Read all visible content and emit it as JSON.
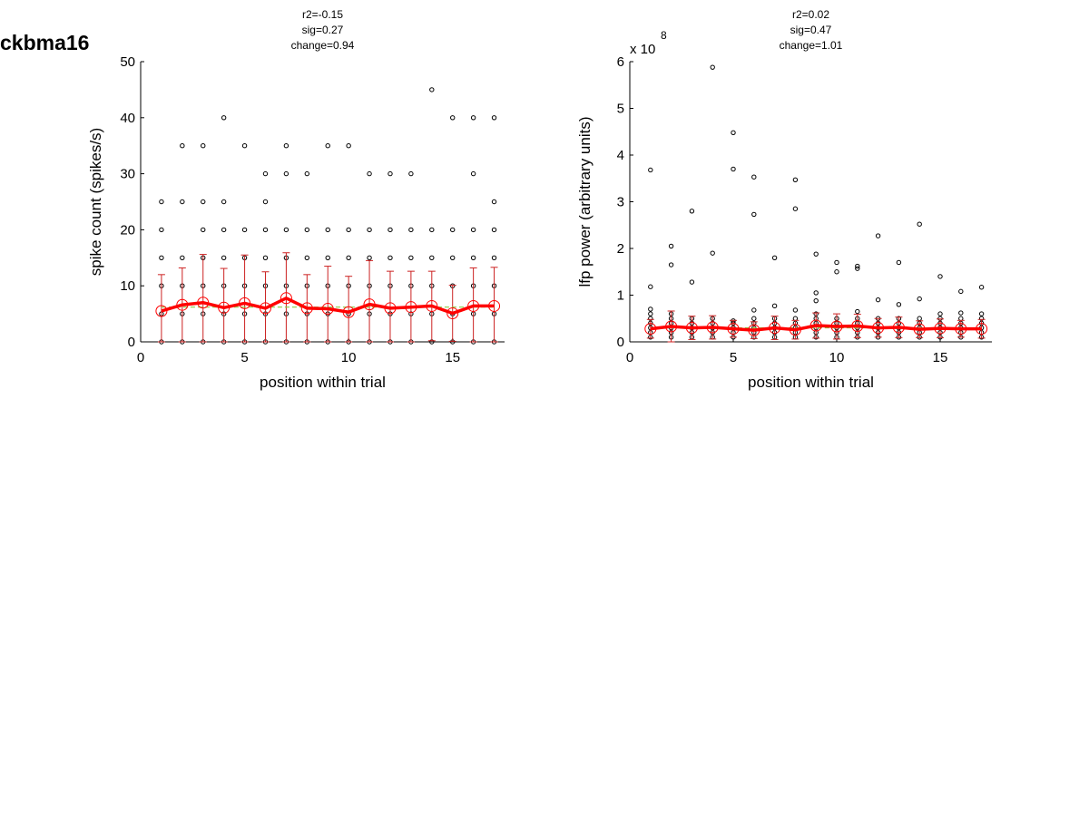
{
  "figure": {
    "label": "ckbma16",
    "colors": {
      "mean_line": "#ff0000",
      "error_bar": "#cc2222",
      "points": "#000000",
      "fit_line": "#88cc44",
      "axis": "#000000"
    }
  },
  "chart_data": [
    {
      "type": "scatter",
      "title_lines": [
        "r2=-0.15",
        "sig=0.27",
        "change=0.94"
      ],
      "xlabel": "position within trial",
      "ylabel": "spike count (spikes/s)",
      "exponent_label": "",
      "xlim": [
        0,
        17.5
      ],
      "ylim": [
        0,
        50
      ],
      "xticks": [
        0,
        5,
        10,
        15
      ],
      "yticks": [
        0,
        10,
        20,
        30,
        40,
        50
      ],
      "xtick_labels": [
        "0",
        "5",
        "10",
        "15"
      ],
      "ytick_labels": [
        "0",
        "10",
        "20",
        "30",
        "40",
        "50"
      ],
      "grid": false,
      "points": [
        [
          1,
          0
        ],
        [
          1,
          5
        ],
        [
          1,
          10
        ],
        [
          1,
          15
        ],
        [
          1,
          20
        ],
        [
          1,
          25
        ],
        [
          2,
          0
        ],
        [
          2,
          5
        ],
        [
          2,
          10
        ],
        [
          2,
          15
        ],
        [
          2,
          25
        ],
        [
          2,
          35
        ],
        [
          3,
          0
        ],
        [
          3,
          5
        ],
        [
          3,
          10
        ],
        [
          3,
          15
        ],
        [
          3,
          20
        ],
        [
          3,
          25
        ],
        [
          3,
          35
        ],
        [
          4,
          0
        ],
        [
          4,
          5
        ],
        [
          4,
          10
        ],
        [
          4,
          15
        ],
        [
          4,
          20
        ],
        [
          4,
          25
        ],
        [
          4,
          40
        ],
        [
          5,
          0
        ],
        [
          5,
          5
        ],
        [
          5,
          10
        ],
        [
          5,
          15
        ],
        [
          5,
          20
        ],
        [
          5,
          35
        ],
        [
          6,
          0
        ],
        [
          6,
          5
        ],
        [
          6,
          10
        ],
        [
          6,
          15
        ],
        [
          6,
          20
        ],
        [
          6,
          25
        ],
        [
          6,
          30
        ],
        [
          7,
          0
        ],
        [
          7,
          5
        ],
        [
          7,
          10
        ],
        [
          7,
          15
        ],
        [
          7,
          20
        ],
        [
          7,
          30
        ],
        [
          7,
          35
        ],
        [
          8,
          0
        ],
        [
          8,
          5
        ],
        [
          8,
          10
        ],
        [
          8,
          15
        ],
        [
          8,
          20
        ],
        [
          8,
          30
        ],
        [
          9,
          0
        ],
        [
          9,
          5
        ],
        [
          9,
          10
        ],
        [
          9,
          15
        ],
        [
          9,
          20
        ],
        [
          9,
          35
        ],
        [
          10,
          0
        ],
        [
          10,
          5
        ],
        [
          10,
          10
        ],
        [
          10,
          15
        ],
        [
          10,
          20
        ],
        [
          10,
          35
        ],
        [
          11,
          0
        ],
        [
          11,
          5
        ],
        [
          11,
          10
        ],
        [
          11,
          15
        ],
        [
          11,
          20
        ],
        [
          11,
          30
        ],
        [
          12,
          0
        ],
        [
          12,
          5
        ],
        [
          12,
          10
        ],
        [
          12,
          15
        ],
        [
          12,
          20
        ],
        [
          12,
          30
        ],
        [
          13,
          0
        ],
        [
          13,
          5
        ],
        [
          13,
          10
        ],
        [
          13,
          15
        ],
        [
          13,
          20
        ],
        [
          13,
          30
        ],
        [
          14,
          0
        ],
        [
          14,
          5
        ],
        [
          14,
          10
        ],
        [
          14,
          15
        ],
        [
          14,
          20
        ],
        [
          14,
          45
        ],
        [
          15,
          0
        ],
        [
          15,
          5
        ],
        [
          15,
          10
        ],
        [
          15,
          15
        ],
        [
          15,
          20
        ],
        [
          15,
          40
        ],
        [
          16,
          0
        ],
        [
          16,
          5
        ],
        [
          16,
          10
        ],
        [
          16,
          15
        ],
        [
          16,
          20
        ],
        [
          16,
          30
        ],
        [
          16,
          40
        ],
        [
          17,
          0
        ],
        [
          17,
          5
        ],
        [
          17,
          10
        ],
        [
          17,
          15
        ],
        [
          17,
          20
        ],
        [
          17,
          25
        ],
        [
          17,
          40
        ]
      ],
      "means": {
        "x": [
          1,
          2,
          3,
          4,
          5,
          6,
          7,
          8,
          9,
          10,
          11,
          12,
          13,
          14,
          15,
          16,
          17
        ],
        "y": [
          5.5,
          6.6,
          7.0,
          6.1,
          6.9,
          6.0,
          7.8,
          6.0,
          5.9,
          5.3,
          6.7,
          6.0,
          6.2,
          6.4,
          5.1,
          6.4,
          6.4
        ],
        "err": [
          6.5,
          6.6,
          8.6,
          7.0,
          8.6,
          6.5,
          8.1,
          6.0,
          7.6,
          6.4,
          7.8,
          6.6,
          6.4,
          6.2,
          5.0,
          6.8,
          6.9
        ]
      },
      "fit_line": {
        "x": [
          1,
          17
        ],
        "y": [
          6.2,
          6.2
        ]
      }
    },
    {
      "type": "scatter",
      "title_lines": [
        "r2=0.02",
        "sig=0.47",
        "change=1.01"
      ],
      "xlabel": "position within trial",
      "ylabel": "lfp power (arbitrary units)",
      "exponent_label": "x 10",
      "exponent_power": "8",
      "xlim": [
        0,
        17.5
      ],
      "ylim": [
        0,
        6
      ],
      "xticks": [
        0,
        5,
        10,
        15
      ],
      "yticks": [
        0,
        1,
        2,
        3,
        4,
        5,
        6
      ],
      "xtick_labels": [
        "0",
        "5",
        "10",
        "15"
      ],
      "ytick_labels": [
        "0",
        "1",
        "2",
        "3",
        "4",
        "5",
        "6"
      ],
      "grid": false,
      "points": [
        [
          1,
          0.1
        ],
        [
          1,
          0.2
        ],
        [
          1,
          0.3
        ],
        [
          1,
          0.4
        ],
        [
          1,
          0.5
        ],
        [
          1,
          0.6
        ],
        [
          1,
          0.7
        ],
        [
          1,
          1.18
        ],
        [
          1,
          3.68
        ],
        [
          2,
          0.1
        ],
        [
          2,
          0.2
        ],
        [
          2,
          0.3
        ],
        [
          2,
          0.4
        ],
        [
          2,
          0.5
        ],
        [
          2,
          0.6
        ],
        [
          2,
          1.65
        ],
        [
          2,
          2.05
        ],
        [
          3,
          0.1
        ],
        [
          3,
          0.2
        ],
        [
          3,
          0.3
        ],
        [
          3,
          0.4
        ],
        [
          3,
          0.5
        ],
        [
          3,
          1.28
        ],
        [
          3,
          2.8
        ],
        [
          4,
          0.1
        ],
        [
          4,
          0.2
        ],
        [
          4,
          0.3
        ],
        [
          4,
          0.4
        ],
        [
          4,
          0.5
        ],
        [
          4,
          1.9
        ],
        [
          4,
          5.88
        ],
        [
          5,
          0.1
        ],
        [
          5,
          0.2
        ],
        [
          5,
          0.3
        ],
        [
          5,
          0.4
        ],
        [
          5,
          0.45
        ],
        [
          5,
          3.7
        ],
        [
          5,
          4.48
        ],
        [
          6,
          0.1
        ],
        [
          6,
          0.2
        ],
        [
          6,
          0.3
        ],
        [
          6,
          0.4
        ],
        [
          6,
          0.5
        ],
        [
          6,
          0.68
        ],
        [
          6,
          2.73
        ],
        [
          6,
          3.53
        ],
        [
          7,
          0.1
        ],
        [
          7,
          0.2
        ],
        [
          7,
          0.3
        ],
        [
          7,
          0.4
        ],
        [
          7,
          0.5
        ],
        [
          7,
          0.77
        ],
        [
          7,
          1.8
        ],
        [
          8,
          0.1
        ],
        [
          8,
          0.2
        ],
        [
          8,
          0.3
        ],
        [
          8,
          0.4
        ],
        [
          8,
          0.5
        ],
        [
          8,
          0.68
        ],
        [
          8,
          2.85
        ],
        [
          8,
          3.47
        ],
        [
          9,
          0.1
        ],
        [
          9,
          0.2
        ],
        [
          9,
          0.3
        ],
        [
          9,
          0.4
        ],
        [
          9,
          0.5
        ],
        [
          9,
          0.6
        ],
        [
          9,
          0.88
        ],
        [
          9,
          1.05
        ],
        [
          9,
          1.88
        ],
        [
          10,
          0.1
        ],
        [
          10,
          0.2
        ],
        [
          10,
          0.3
        ],
        [
          10,
          0.4
        ],
        [
          10,
          0.5
        ],
        [
          10,
          1.5
        ],
        [
          10,
          1.7
        ],
        [
          11,
          0.1
        ],
        [
          11,
          0.2
        ],
        [
          11,
          0.3
        ],
        [
          11,
          0.4
        ],
        [
          11,
          0.5
        ],
        [
          11,
          0.65
        ],
        [
          11,
          1.57
        ],
        [
          11,
          1.62
        ],
        [
          12,
          0.1
        ],
        [
          12,
          0.2
        ],
        [
          12,
          0.3
        ],
        [
          12,
          0.4
        ],
        [
          12,
          0.5
        ],
        [
          12,
          0.9
        ],
        [
          12,
          2.27
        ],
        [
          13,
          0.1
        ],
        [
          13,
          0.2
        ],
        [
          13,
          0.3
        ],
        [
          13,
          0.4
        ],
        [
          13,
          0.5
        ],
        [
          13,
          0.8
        ],
        [
          13,
          1.7
        ],
        [
          14,
          0.1
        ],
        [
          14,
          0.2
        ],
        [
          14,
          0.3
        ],
        [
          14,
          0.4
        ],
        [
          14,
          0.5
        ],
        [
          14,
          0.92
        ],
        [
          14,
          2.52
        ],
        [
          15,
          0.1
        ],
        [
          15,
          0.2
        ],
        [
          15,
          0.3
        ],
        [
          15,
          0.4
        ],
        [
          15,
          0.5
        ],
        [
          15,
          0.6
        ],
        [
          15,
          1.4
        ],
        [
          16,
          0.1
        ],
        [
          16,
          0.2
        ],
        [
          16,
          0.3
        ],
        [
          16,
          0.4
        ],
        [
          16,
          0.5
        ],
        [
          16,
          0.62
        ],
        [
          16,
          1.08
        ],
        [
          17,
          0.1
        ],
        [
          17,
          0.2
        ],
        [
          17,
          0.3
        ],
        [
          17,
          0.4
        ],
        [
          17,
          0.5
        ],
        [
          17,
          0.6
        ],
        [
          17,
          1.17
        ]
      ],
      "means": {
        "x": [
          1,
          2,
          3,
          4,
          5,
          6,
          7,
          8,
          9,
          10,
          11,
          12,
          13,
          14,
          15,
          16,
          17
        ],
        "y": [
          0.28,
          0.33,
          0.3,
          0.31,
          0.28,
          0.25,
          0.3,
          0.26,
          0.35,
          0.33,
          0.34,
          0.3,
          0.31,
          0.27,
          0.29,
          0.28,
          0.28
        ],
        "err": [
          0.2,
          0.33,
          0.25,
          0.25,
          0.18,
          0.18,
          0.25,
          0.2,
          0.27,
          0.27,
          0.25,
          0.2,
          0.22,
          0.18,
          0.2,
          0.18,
          0.2
        ]
      },
      "fit_line": {
        "x": [
          1,
          17
        ],
        "y": [
          0.3,
          0.3
        ]
      }
    }
  ]
}
